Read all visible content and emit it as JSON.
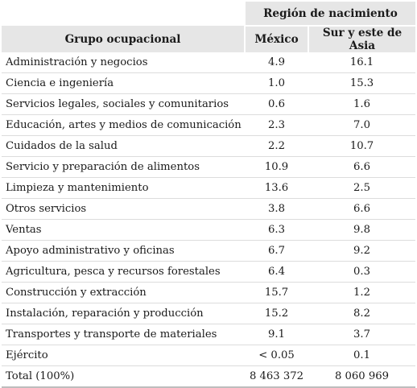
{
  "table": {
    "header": {
      "group_title": "Región de nacimiento",
      "col_occupation": "Grupo ocupacional",
      "col_mexico": "México",
      "col_asia": "Sur y este de Asia"
    },
    "rows": [
      {
        "occupation": "Administración y negocios",
        "mexico": "4.9",
        "asia": "16.1"
      },
      {
        "occupation": "Ciencia e ingeniería",
        "mexico": "1.0",
        "asia": "15.3"
      },
      {
        "occupation": "Servicios legales, sociales y comunitarios",
        "mexico": "0.6",
        "asia": "1.6"
      },
      {
        "occupation": "Educación, artes y medios de comunicación",
        "mexico": "2.3",
        "asia": "7.0"
      },
      {
        "occupation": "Cuidados de la salud",
        "mexico": "2.2",
        "asia": "10.7"
      },
      {
        "occupation": "Servicio y preparación de alimentos",
        "mexico": "10.9",
        "asia": "6.6"
      },
      {
        "occupation": "Limpieza y mantenimiento",
        "mexico": "13.6",
        "asia": "2.5"
      },
      {
        "occupation": "Otros servicios",
        "mexico": "3.8",
        "asia": "6.6"
      },
      {
        "occupation": "Ventas",
        "mexico": "6.3",
        "asia": "9.8"
      },
      {
        "occupation": "Apoyo administrativo y oficinas",
        "mexico": "6.7",
        "asia": "9.2"
      },
      {
        "occupation": "Agricultura, pesca y recursos forestales",
        "mexico": "6.4",
        "asia": "0.3"
      },
      {
        "occupation": "Construcción y extracción",
        "mexico": "15.7",
        "asia": "1.2"
      },
      {
        "occupation": "Instalación, reparación y producción",
        "mexico": "15.2",
        "asia": "8.2"
      },
      {
        "occupation": "Transportes y transporte de materiales",
        "mexico": "9.1",
        "asia": "3.7"
      },
      {
        "occupation": "Ejército",
        "mexico": "< 0.05",
        "asia": "0.1"
      },
      {
        "occupation": "Total (100%)",
        "mexico": "8 463 372",
        "asia": "8 060 969"
      }
    ]
  }
}
